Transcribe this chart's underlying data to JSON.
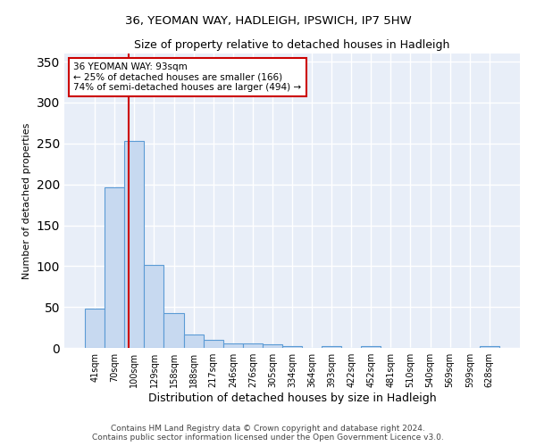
{
  "title": "36, YEOMAN WAY, HADLEIGH, IPSWICH, IP7 5HW",
  "subtitle": "Size of property relative to detached houses in Hadleigh",
  "xlabel": "Distribution of detached houses by size in Hadleigh",
  "ylabel": "Number of detached properties",
  "bar_heights": [
    48,
    196,
    253,
    102,
    43,
    16,
    10,
    5,
    5,
    4,
    2,
    0,
    2,
    0,
    2,
    0,
    0,
    0,
    0,
    0,
    2
  ],
  "bar_labels": [
    "41sqm",
    "70sqm",
    "100sqm",
    "129sqm",
    "158sqm",
    "188sqm",
    "217sqm",
    "246sqm",
    "276sqm",
    "305sqm",
    "334sqm",
    "364sqm",
    "393sqm",
    "422sqm",
    "452sqm",
    "481sqm",
    "510sqm",
    "540sqm",
    "569sqm",
    "599sqm",
    "628sqm"
  ],
  "bar_color": "#c7d9f0",
  "bar_edge_color": "#5b9bd5",
  "bar_edge_width": 0.8,
  "red_line_x": 1.72,
  "red_line_color": "#cc0000",
  "annotation_text": "36 YEOMAN WAY: 93sqm\n← 25% of detached houses are smaller (166)\n74% of semi-detached houses are larger (494) →",
  "ylim": [
    0,
    360
  ],
  "yticks": [
    0,
    50,
    100,
    150,
    200,
    250,
    300,
    350
  ],
  "background_color": "#e8eef8",
  "grid_color": "#ffffff",
  "fig_bg": "#ffffff",
  "footer_line1": "Contains HM Land Registry data © Crown copyright and database right 2024.",
  "footer_line2": "Contains public sector information licensed under the Open Government Licence v3.0."
}
